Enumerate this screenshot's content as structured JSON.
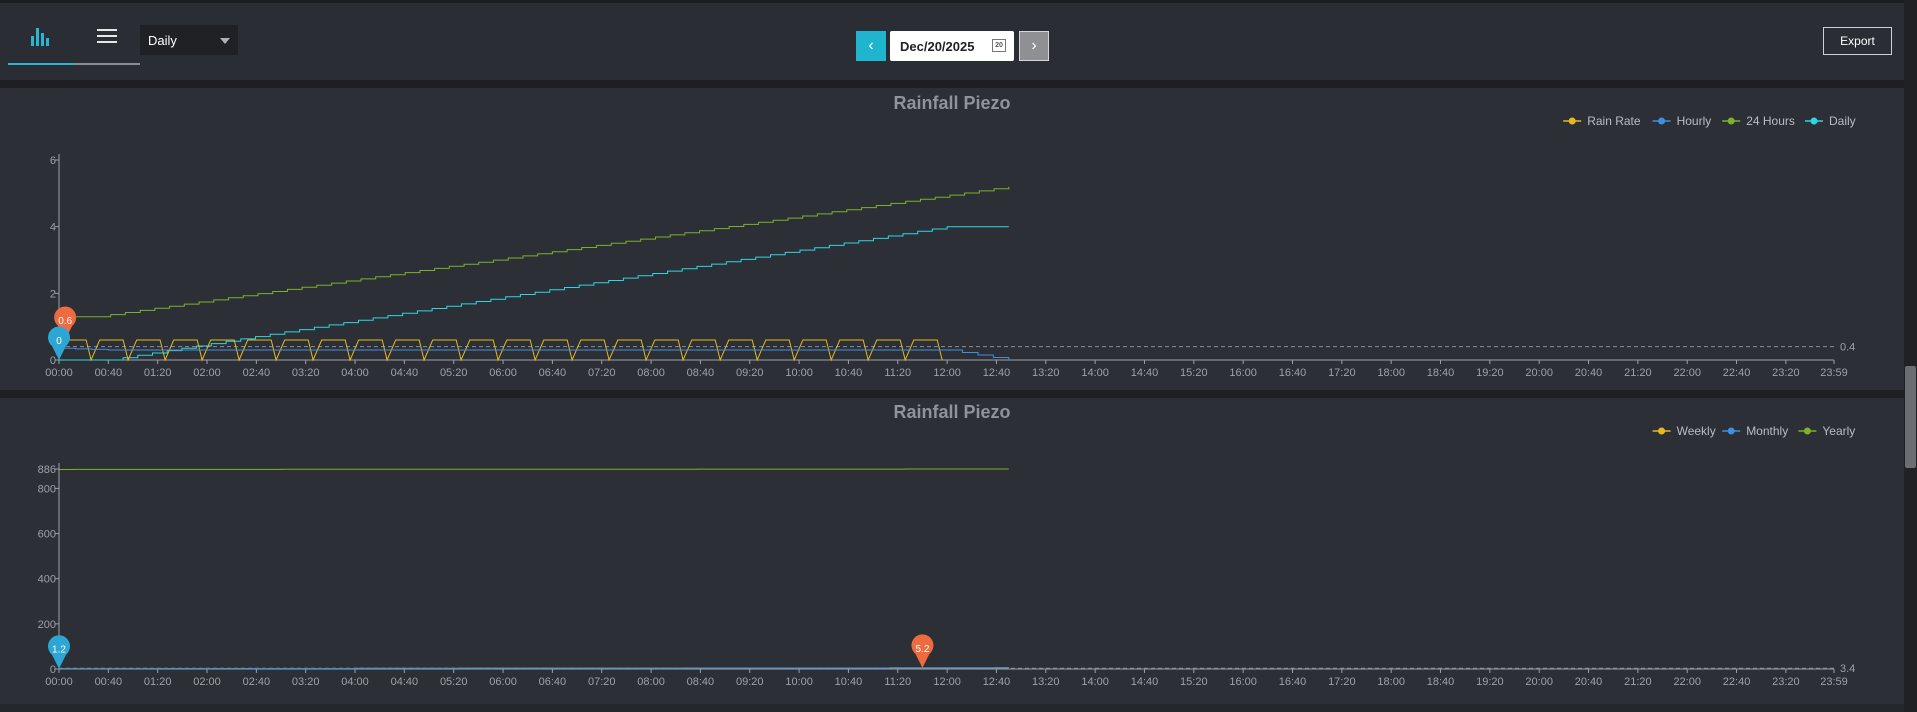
{
  "toolbar": {
    "view_select": "Daily",
    "date": "Dec/20/2025",
    "calendar_day": "20",
    "prev_symbol": "‹",
    "next_symbol": "›",
    "export_label": "Export"
  },
  "chart_data": [
    {
      "type": "line",
      "title": "Rainfall Piezo",
      "x_ticks": [
        "00:00",
        "00:40",
        "01:20",
        "02:00",
        "02:40",
        "03:20",
        "04:00",
        "04:40",
        "05:20",
        "06:00",
        "06:40",
        "07:20",
        "08:00",
        "08:40",
        "09:20",
        "10:00",
        "10:40",
        "11:20",
        "12:00",
        "12:40",
        "13:20",
        "14:00",
        "14:40",
        "15:20",
        "16:00",
        "16:40",
        "17:20",
        "18:00",
        "18:40",
        "19:20",
        "20:00",
        "20:40",
        "21:20",
        "22:00",
        "22:40",
        "23:20",
        "23:59"
      ],
      "x_range_minutes": [
        0,
        1439
      ],
      "y_ticks": [
        "0",
        "2",
        "4",
        "6"
      ],
      "ylim": [
        0,
        6
      ],
      "legend": {
        "position": "top-right",
        "items": [
          "Rain Rate",
          "Hourly",
          "24 Hours",
          "Daily"
        ]
      },
      "colors": {
        "Rain Rate": "#e6b821",
        "Hourly": "#3f8fe0",
        "24 Hours": "#7fb02c",
        "Daily": "#2fd6e0"
      },
      "series": [
        {
          "name": "24 Hours",
          "x": [
            0,
            30,
            770
          ],
          "y": [
            1.3,
            1.3,
            5.2
          ]
        },
        {
          "name": "Daily",
          "x": [
            0,
            40,
            720,
            770
          ],
          "y": [
            0,
            0,
            4.0,
            4.0
          ]
        },
        {
          "name": "Rain Rate",
          "pattern": "square pulses between 0 and 0.6",
          "x_range": [
            0,
            715
          ]
        },
        {
          "name": "Hourly",
          "x": [
            0,
            40,
            720,
            770
          ],
          "y": [
            0.35,
            0.3,
            0.3,
            0.0
          ]
        }
      ],
      "reference_line": {
        "value": "0.4",
        "style": "dashed"
      },
      "markers": [
        {
          "label": "0.6",
          "x": 5,
          "y": 0.6,
          "color": "#ee6a3f"
        },
        {
          "label": "0",
          "x": 0,
          "y": 0,
          "color": "#2ea6d4"
        }
      ]
    },
    {
      "type": "line",
      "title": "Rainfall Piezo",
      "x_ticks": [
        "00:00",
        "00:40",
        "01:20",
        "02:00",
        "02:40",
        "03:20",
        "04:00",
        "04:40",
        "05:20",
        "06:00",
        "06:40",
        "07:20",
        "08:00",
        "08:40",
        "09:20",
        "10:00",
        "10:40",
        "11:20",
        "12:00",
        "12:40",
        "13:20",
        "14:00",
        "14:40",
        "15:20",
        "16:00",
        "16:40",
        "17:20",
        "18:00",
        "18:40",
        "19:20",
        "20:00",
        "20:40",
        "21:20",
        "22:00",
        "22:40",
        "23:20",
        "23:59"
      ],
      "x_range_minutes": [
        0,
        1439
      ],
      "y_ticks": [
        "0",
        "200",
        "400",
        "600",
        "800",
        "886"
      ],
      "ylim": [
        0,
        886
      ],
      "legend": {
        "position": "top-right",
        "items": [
          "Weekly",
          "Monthly",
          "Yearly"
        ]
      },
      "colors": {
        "Weekly": "#e6b821",
        "Monthly": "#3f8fe0",
        "Yearly": "#7fb02c"
      },
      "series": [
        {
          "name": "Yearly",
          "x": [
            0,
            770
          ],
          "y": [
            884,
            886
          ]
        },
        {
          "name": "Weekly",
          "x": [
            0,
            770
          ],
          "y": [
            1.2,
            5.2
          ]
        },
        {
          "name": "Monthly",
          "x": [
            0,
            770
          ],
          "y": [
            1.2,
            5.2
          ]
        }
      ],
      "reference_line": {
        "value": "3.4",
        "style": "dashed"
      },
      "markers": [
        {
          "label": "1.2",
          "x": 0,
          "y": 1.2,
          "color": "#2ea6d4"
        },
        {
          "label": "5.2",
          "x": 700,
          "y": 5.2,
          "color": "#ee6a3f"
        }
      ]
    }
  ]
}
